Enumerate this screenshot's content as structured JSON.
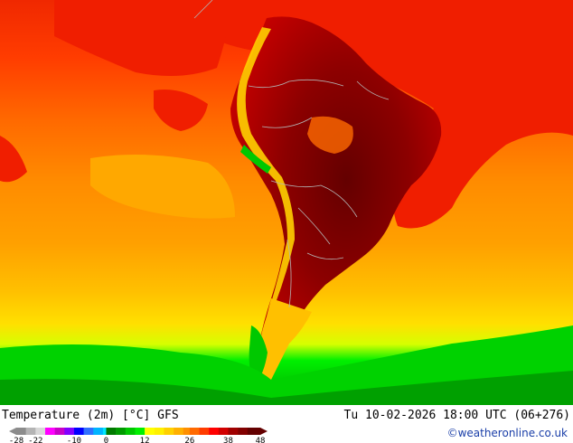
{
  "map": {
    "title": "Temperature (2m) [°C] GFS",
    "datetime": "Tu 10-02-2026 18:00 UTC (06+276)",
    "credit": "©weatheronline.co.uk",
    "legend": {
      "tick_labels": [
        "-28",
        "-22",
        "-10",
        "0",
        "12",
        "26",
        "38",
        "48"
      ],
      "bands": [
        {
          "from": -28,
          "color": "#8c8c8c"
        },
        {
          "from": -25,
          "color": "#b4b4b4"
        },
        {
          "from": -22,
          "color": "#d8d8d8"
        },
        {
          "from": -19,
          "color": "#ff00ff"
        },
        {
          "from": -16,
          "color": "#c800c8"
        },
        {
          "from": -13,
          "color": "#8000ff"
        },
        {
          "from": -10,
          "color": "#0000ff"
        },
        {
          "from": -7,
          "color": "#3070ff"
        },
        {
          "from": -4,
          "color": "#00b4ff"
        },
        {
          "from": -1,
          "color": "#00e6ff"
        },
        {
          "from": 0,
          "color": "#007a00"
        },
        {
          "from": 3,
          "color": "#009a00"
        },
        {
          "from": 6,
          "color": "#00c800"
        },
        {
          "from": 9,
          "color": "#00f000"
        },
        {
          "from": 12,
          "color": "#ffff00"
        },
        {
          "from": 15,
          "color": "#fff000"
        },
        {
          "from": 18,
          "color": "#ffd000"
        },
        {
          "from": 21,
          "color": "#ffb000"
        },
        {
          "from": 24,
          "color": "#ff9000"
        },
        {
          "from": 26,
          "color": "#ff6a00"
        },
        {
          "from": 29,
          "color": "#ff3c00"
        },
        {
          "from": 32,
          "color": "#ff0000"
        },
        {
          "from": 35,
          "color": "#d20000"
        },
        {
          "from": 38,
          "color": "#a00000"
        },
        {
          "from": 41,
          "color": "#820000"
        },
        {
          "from": 44,
          "color": "#640000"
        }
      ],
      "max": 48
    },
    "colors": {
      "ocean_warm": "#ff8c00",
      "ocean_hot": "#f02800",
      "land_hot": "#8c0000",
      "cold_south": "#00d200",
      "border": "#b4b4b4"
    }
  }
}
